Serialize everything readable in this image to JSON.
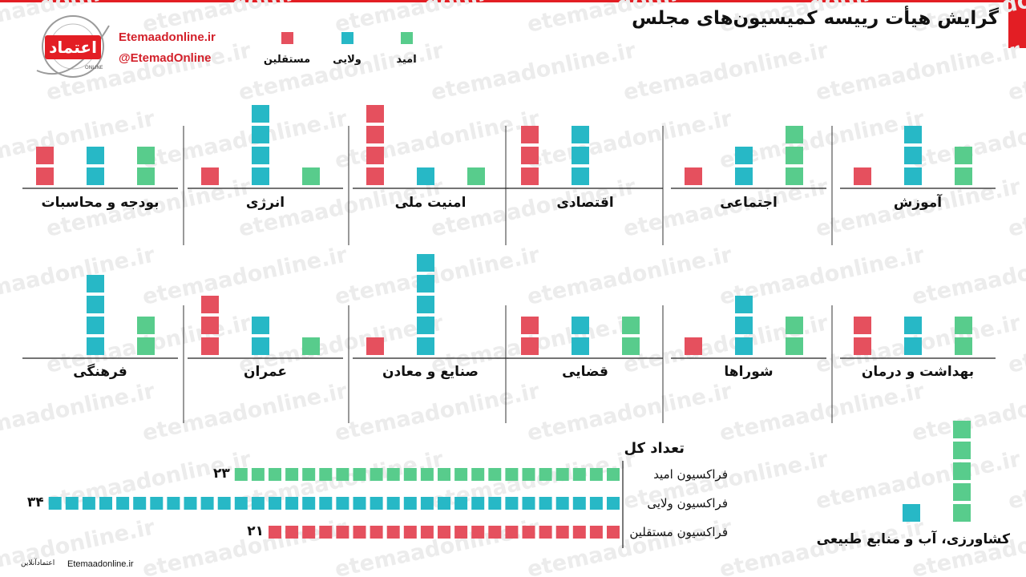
{
  "title": "گرایش هیأت رییسه کمیسیون‌های مجلس",
  "brand": {
    "site": "Etemaadonline.ir",
    "handle": "@EtemadOnline",
    "watermark": "etemaadonline.ir",
    "logo_text": "اعتماد",
    "logo_sub": "ONLINE"
  },
  "footer": {
    "site": "Etemaadonline.ir",
    "name": "اعتمادآنلاین"
  },
  "colors": {
    "omid": "#58cc8c",
    "velayi": "#27b8c6",
    "mostaghel": "#e5505e",
    "accent": "#e31e24"
  },
  "legend": {
    "omid": "امید",
    "velayi": "ولایی",
    "mostaghel": "مستقلین"
  },
  "chart_data": {
    "type": "bar",
    "series_order": [
      "mostaghel",
      "velayi",
      "omid"
    ],
    "committees": [
      {
        "name": "آموزش",
        "mostaghel": 1,
        "velayi": 3,
        "omid": 2
      },
      {
        "name": "اجتماعی",
        "mostaghel": 1,
        "velayi": 2,
        "omid": 3
      },
      {
        "name": "اقتصادی",
        "mostaghel": 3,
        "velayi": 3,
        "omid": 0
      },
      {
        "name": "امنیت ملی",
        "mostaghel": 4,
        "velayi": 1,
        "omid": 1
      },
      {
        "name": "انرژی",
        "mostaghel": 1,
        "velayi": 4,
        "omid": 1
      },
      {
        "name": "بودجه و محاسبات",
        "mostaghel": 2,
        "velayi": 2,
        "omid": 2
      },
      {
        "name": "بهداشت و درمان",
        "mostaghel": 2,
        "velayi": 2,
        "omid": 2
      },
      {
        "name": "شوراها",
        "mostaghel": 1,
        "velayi": 3,
        "omid": 2
      },
      {
        "name": "قضایی",
        "mostaghel": 2,
        "velayi": 2,
        "omid": 2
      },
      {
        "name": "صنایع و معادن",
        "mostaghel": 1,
        "velayi": 5,
        "omid": 0
      },
      {
        "name": "عمران",
        "mostaghel": 3,
        "velayi": 2,
        "omid": 1
      },
      {
        "name": "فرهنگی",
        "mostaghel": 0,
        "velayi": 4,
        "omid": 2
      },
      {
        "name": "کشاورزی، آب و منابع طبیعی",
        "mostaghel": 0,
        "velayi": 1,
        "omid": 5
      }
    ],
    "totals_title": "تعداد کل",
    "totals": [
      {
        "key": "omid",
        "label": "فراکسیون امید",
        "value": 23,
        "value_text": "۲۳"
      },
      {
        "key": "velayi",
        "label": "فراکسیون ولایی",
        "value": 34,
        "value_text": "۳۴"
      },
      {
        "key": "mostaghel",
        "label": "فراکسیون مستقلین",
        "value": 21,
        "value_text": "۲۱"
      }
    ]
  }
}
